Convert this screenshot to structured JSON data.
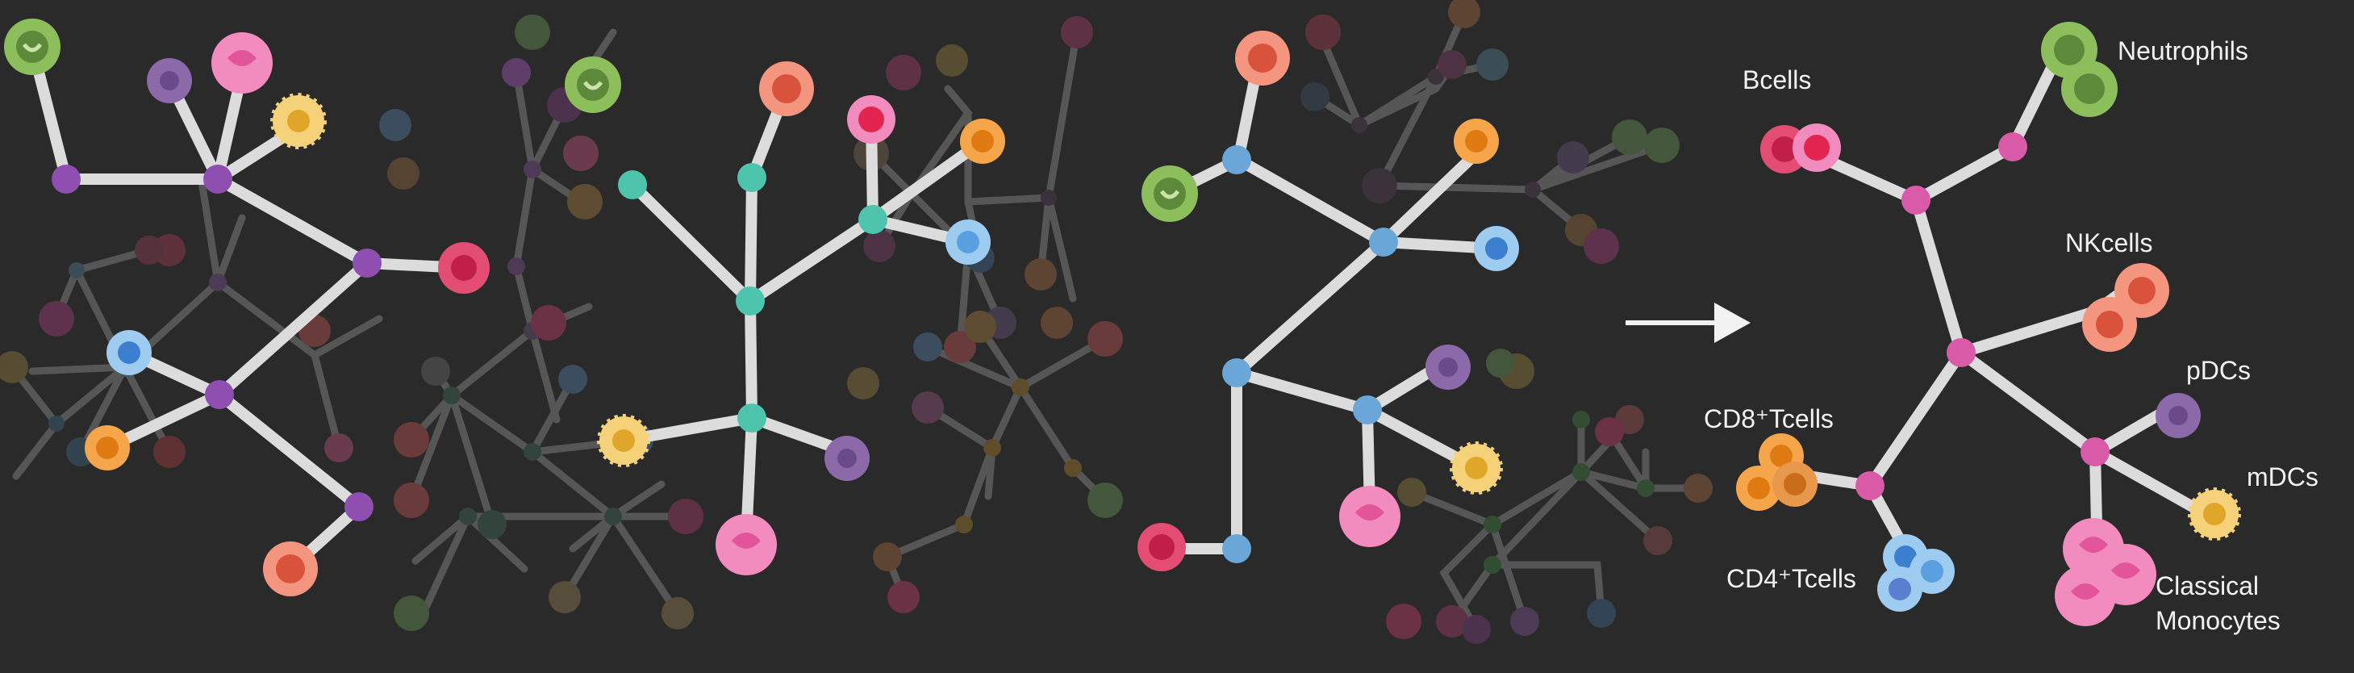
{
  "labels": {
    "bcells": "Bcells",
    "neutrophils": "Neutrophils",
    "nkcells": "NKcells",
    "pdcs": "pDCs",
    "cd8": "CD8⁺Tcells",
    "mdcs": "mDCs",
    "cd4": "CD4⁺Tcells",
    "monocytes_1": "Classical",
    "monocytes_2": "Monocytes"
  },
  "colors": {
    "background": "#2a2a2a",
    "edge_bright": "#dcdcdc",
    "node_purple": "#8e4fb0",
    "node_teal": "#4ec4ad",
    "node_blue": "#6aa6d8",
    "node_pink": "#d95aa6",
    "bcell": "#e34d74",
    "neutrophil": "#8cbf5b",
    "nkcell": "#ef7a6b",
    "pdc": "#8c6aaa",
    "cd8": "#f2912e",
    "mdc": "#f0c04a",
    "cd4": "#5a8fd6",
    "monocyte": "#e8609a"
  }
}
